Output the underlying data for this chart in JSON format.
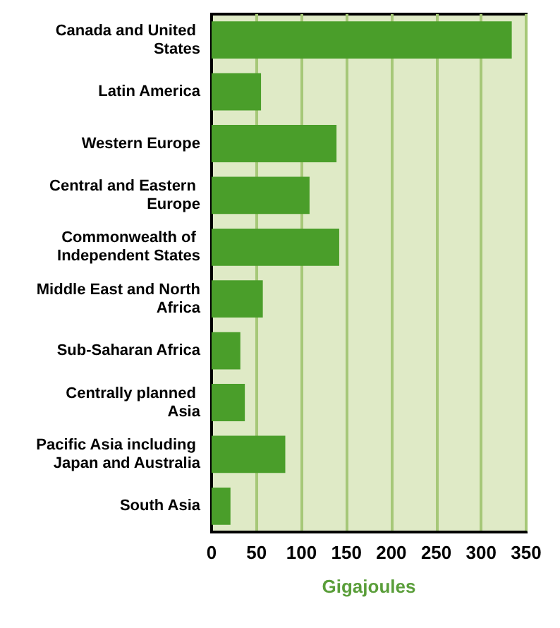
{
  "chart_data": {
    "type": "bar",
    "orientation": "horizontal",
    "xlabel": "Gigajoules",
    "categories": [
      "Canada and United States",
      "Latin America",
      "Western Europe",
      "Central and Eastern Europe",
      "Commonwealth of Independent States",
      "Middle East and North Africa",
      "Sub-Saharan Africa",
      "Centrally planned Asia",
      "Pacific Asia including Japan and Australia",
      "South Asia"
    ],
    "values": [
      334,
      55,
      139,
      109,
      142,
      57,
      32,
      37,
      82,
      21
    ],
    "color": "#4a9e2a",
    "xlim": [
      0,
      350
    ],
    "xticks": [
      0,
      50,
      100,
      150,
      200,
      250,
      300,
      350
    ],
    "grid": "x"
  }
}
